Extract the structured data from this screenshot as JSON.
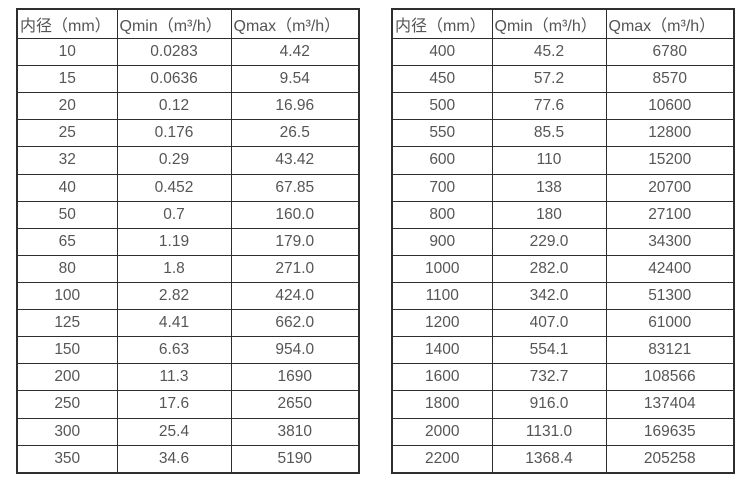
{
  "page": {
    "background": "#ffffff",
    "text_color": "#555555",
    "border_color": "#2e2e2e"
  },
  "tables": [
    {
      "id": "flow-table-left",
      "headers": [
        "内径（mm）",
        "Qmin（m³/h）",
        "Qmax（m³/h）"
      ],
      "rows": [
        [
          "10",
          "0.0283",
          "4.42"
        ],
        [
          "15",
          "0.0636",
          "9.54"
        ],
        [
          "20",
          "0.12",
          "16.96"
        ],
        [
          "25",
          "0.176",
          "26.5"
        ],
        [
          "32",
          "0.29",
          "43.42"
        ],
        [
          "40",
          "0.452",
          "67.85"
        ],
        [
          "50",
          "0.7",
          "160.0"
        ],
        [
          "65",
          "1.19",
          "179.0"
        ],
        [
          "80",
          "1.8",
          "271.0"
        ],
        [
          "100",
          "2.82",
          "424.0"
        ],
        [
          "125",
          "4.41",
          "662.0"
        ],
        [
          "150",
          "6.63",
          "954.0"
        ],
        [
          "200",
          "11.3",
          "1690"
        ],
        [
          "250",
          "17.6",
          "2650"
        ],
        [
          "300",
          "25.4",
          "3810"
        ],
        [
          "350",
          "34.6",
          "5190"
        ]
      ]
    },
    {
      "id": "flow-table-right",
      "headers": [
        "内径（mm）",
        "Qmin（m³/h）",
        "Qmax（m³/h）"
      ],
      "rows": [
        [
          "400",
          "45.2",
          "6780"
        ],
        [
          "450",
          "57.2",
          "8570"
        ],
        [
          "500",
          "77.6",
          "10600"
        ],
        [
          "550",
          "85.5",
          "12800"
        ],
        [
          "600",
          "110",
          "15200"
        ],
        [
          "700",
          "138",
          "20700"
        ],
        [
          "800",
          "180",
          "27100"
        ],
        [
          "900",
          "229.0",
          "34300"
        ],
        [
          "1000",
          "282.0",
          "42400"
        ],
        [
          "1100",
          "342.0",
          "51300"
        ],
        [
          "1200",
          "407.0",
          "61000"
        ],
        [
          "1400",
          "554.1",
          "83121"
        ],
        [
          "1600",
          "732.7",
          "108566"
        ],
        [
          "1800",
          "916.0",
          "137404"
        ],
        [
          "2000",
          "1131.0",
          "169635"
        ],
        [
          "2200",
          "1368.4",
          "205258"
        ]
      ]
    }
  ]
}
